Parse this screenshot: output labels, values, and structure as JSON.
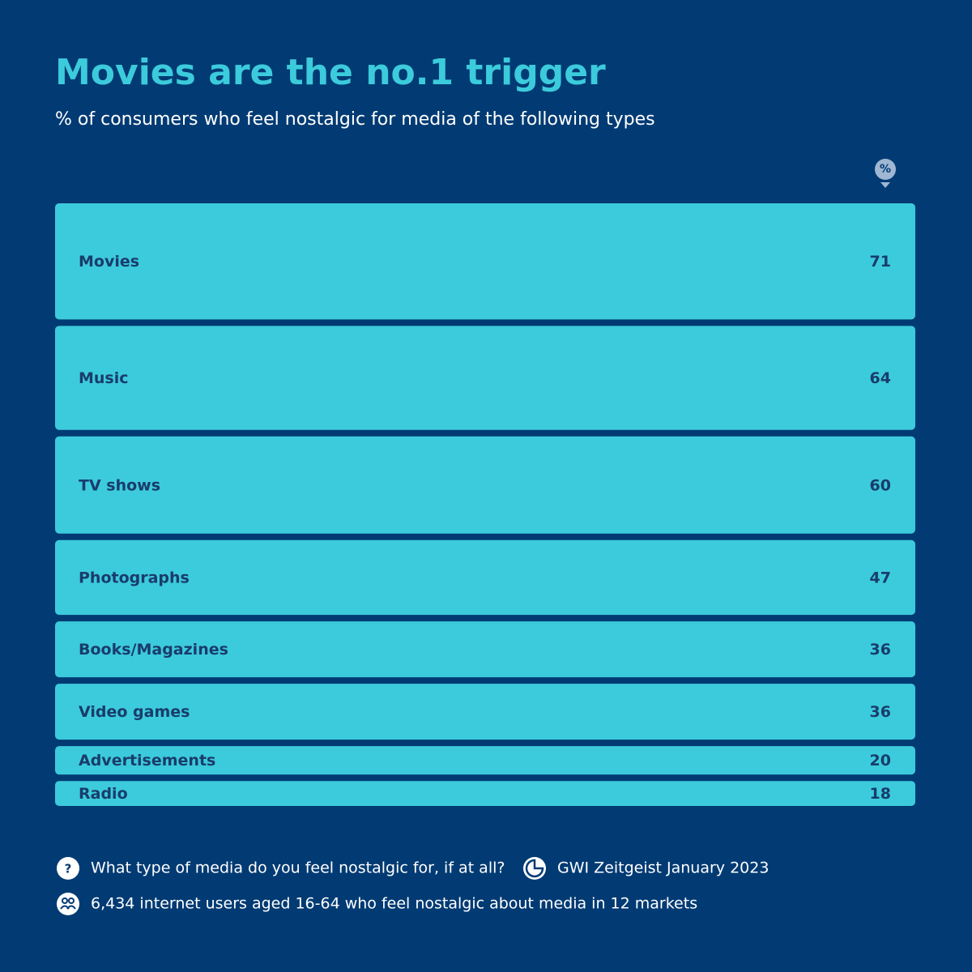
{
  "chart_data": {
    "type": "bar",
    "title": "Movies are the no.1 trigger",
    "subtitle": "% of consumers who feel nostalgic for media of the following types",
    "unit_badge": "%",
    "categories": [
      "Movies",
      "Music",
      "TV shows",
      "Photographs",
      "Books/Magazines",
      "Video games",
      "Advertisements",
      "Radio"
    ],
    "values": [
      71,
      64,
      60,
      47,
      36,
      36,
      20,
      18
    ],
    "color": "#3ccbdc",
    "question_mark": "?",
    "question": "What type of media do you feel nostalgic for, if at all?",
    "source": "GWI Zeitgeist January 2023",
    "sample": "6,434 internet users aged 16-64 who feel nostalgic about media in 12 markets"
  }
}
